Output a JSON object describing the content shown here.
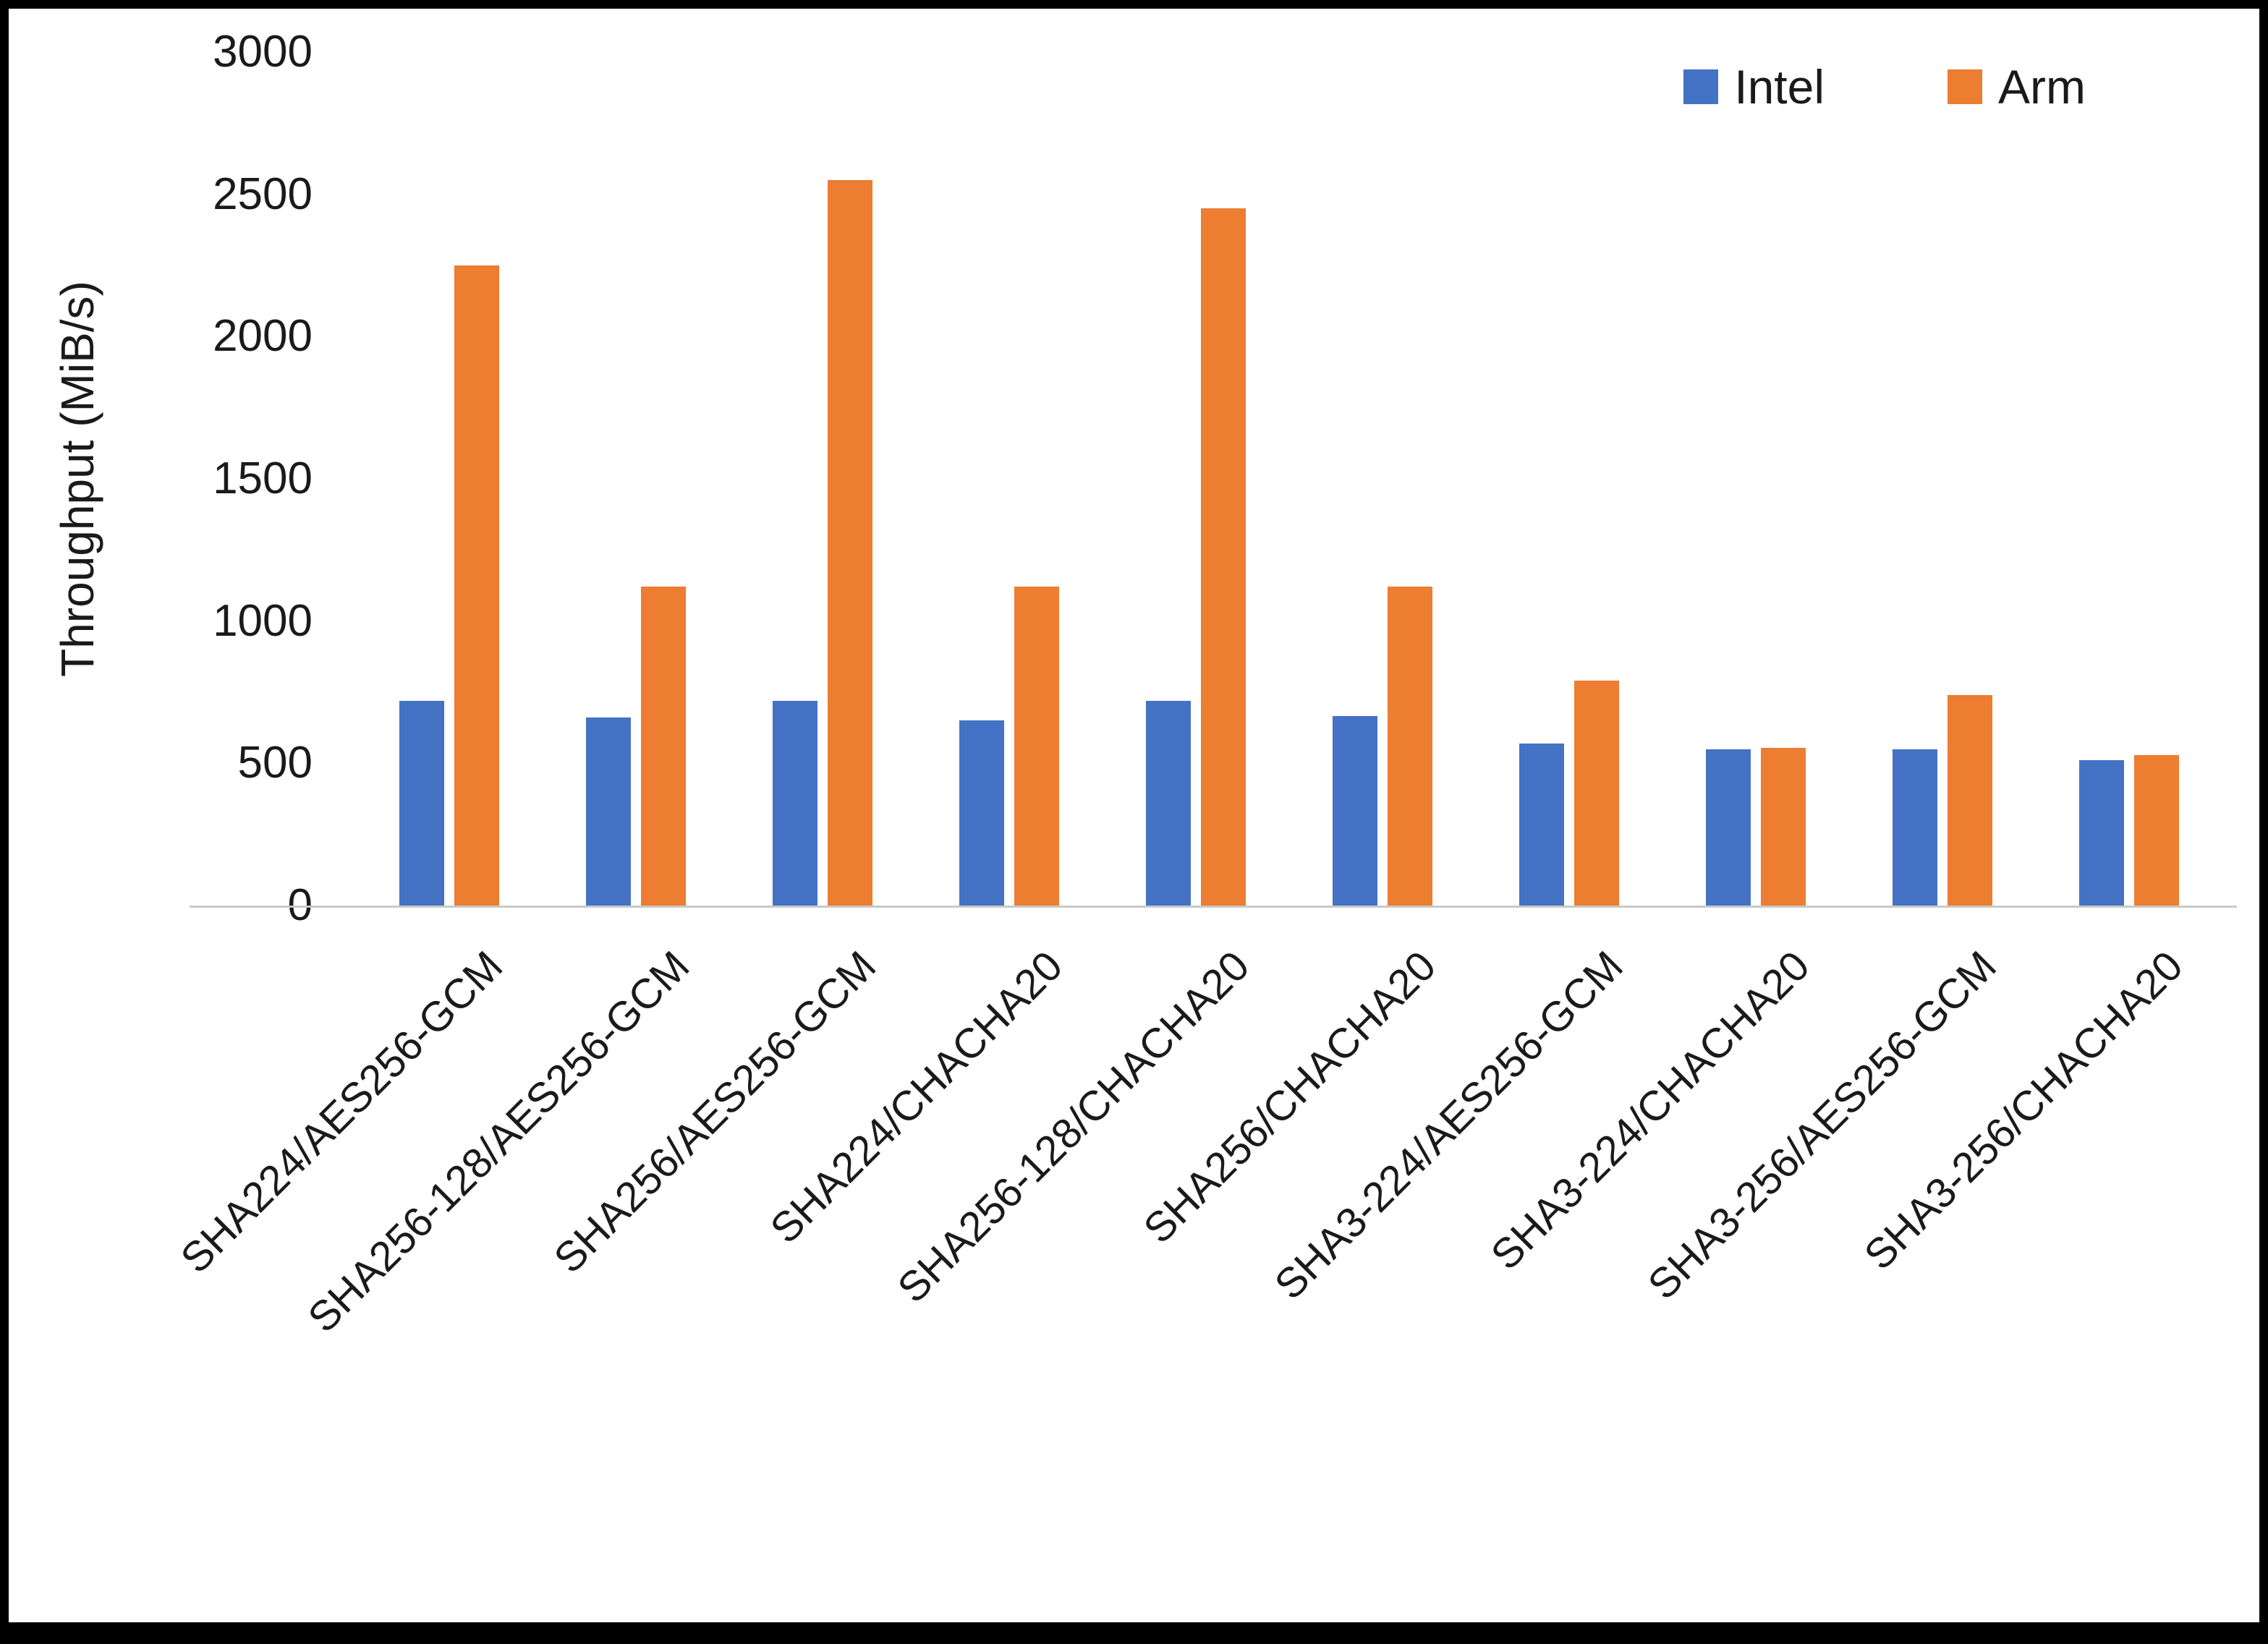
{
  "chart_data": {
    "type": "bar",
    "title": "",
    "xlabel": "",
    "ylabel": "Throughput (MiB/s)",
    "ylim": [
      0,
      3000
    ],
    "ytick_step": 500,
    "grid": false,
    "legend_position": "top-right",
    "categories": [
      "SHA224/AES256-GCM",
      "SHA256-128/AES256-GCM",
      "SHA256/AES256-GCM",
      "SHA224/CHACHA20",
      "SHA256-128/CHACHA20",
      "SHA256/CHACHA20",
      "SHA3-224/AES256-GCM",
      "SHA3-224/CHACHA20",
      "SHA3-256/AES256-GCM",
      "SHA3-256/CHACHA20"
    ],
    "series": [
      {
        "name": "Intel",
        "color": "#4472C4",
        "values": [
          720,
          660,
          720,
          650,
          720,
          665,
          570,
          550,
          550,
          510
        ]
      },
      {
        "name": "Arm",
        "color": "#ED7D31",
        "values": [
          2250,
          1120,
          2550,
          1120,
          2450,
          1120,
          790,
          555,
          740,
          530
        ]
      }
    ]
  }
}
